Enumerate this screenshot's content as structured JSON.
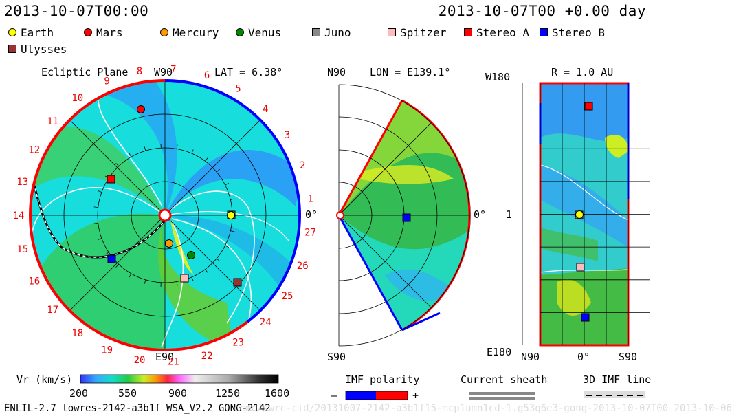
{
  "header": {
    "left_title": "2013-10-07T00:00",
    "right_title": "2013-10-07T00 +0.00 day"
  },
  "legend": [
    {
      "label": "Earth",
      "color": "#ffff00",
      "shape": "circle-icon"
    },
    {
      "label": "Mars",
      "color": "#ff0000",
      "shape": "circle-icon"
    },
    {
      "label": "Mercury",
      "color": "#ff9900",
      "shape": "circle-icon"
    },
    {
      "label": "Venus",
      "color": "#008800",
      "shape": "circle-icon"
    },
    {
      "label": "Juno",
      "color": "#888888",
      "shape": "square-icon"
    },
    {
      "label": "Spitzer",
      "color": "#ffbbbb",
      "shape": "square-icon"
    },
    {
      "label": "Stereo_A",
      "color": "#ff0000",
      "shape": "square-icon"
    },
    {
      "label": "Stereo_B",
      "color": "#0000ff",
      "shape": "square-icon"
    },
    {
      "label": "Ulysses",
      "color": "#993333",
      "shape": "square-icon"
    }
  ],
  "ecliptic": {
    "title": "Ecliptic Plane",
    "top_label": "W90",
    "lat_label": "LAT = 6.38°",
    "bottom_label": "E90",
    "right_label": "0°",
    "rot_numbers": [
      "1",
      "2",
      "3",
      "4",
      "5",
      "6",
      "7",
      "8",
      "9",
      "10",
      "11",
      "12",
      "13",
      "14",
      "15",
      "16",
      "17",
      "18",
      "19",
      "20",
      "21",
      "22",
      "23",
      "24",
      "25",
      "26",
      "27"
    ]
  },
  "meridional": {
    "top_left_label": "N90",
    "lon_label": "LON = E139.1°",
    "bottom_left_label": "S90",
    "right_label": "0°"
  },
  "radial": {
    "r_label": "R = 1.0 AU",
    "top_left": "W180",
    "middle_left": "1",
    "bottom_left": "E180",
    "bottom_n": "N90",
    "bottom_mid": "0°",
    "bottom_s": "S90"
  },
  "colorbar": {
    "label": "Vr (km/s)",
    "ticks": [
      "200",
      "550",
      "900",
      "1250",
      "1600"
    ]
  },
  "imf": {
    "label": "IMF polarity",
    "minus": "–",
    "plus": "+"
  },
  "current_sheath": {
    "label": "Current sheath"
  },
  "imf_line": {
    "label": "3D IMF line"
  },
  "footer": {
    "model": "ENLIL-2.7 lowres-2142-a3b1f WSA_V2.2 GONG-2142",
    "watermark": "ccmc/swrc-cid/20131007-2142-a3b1f15-mcp1umn1cd-1.g53q6e3-gong-2013-10-07T00  2013-10-06"
  }
}
